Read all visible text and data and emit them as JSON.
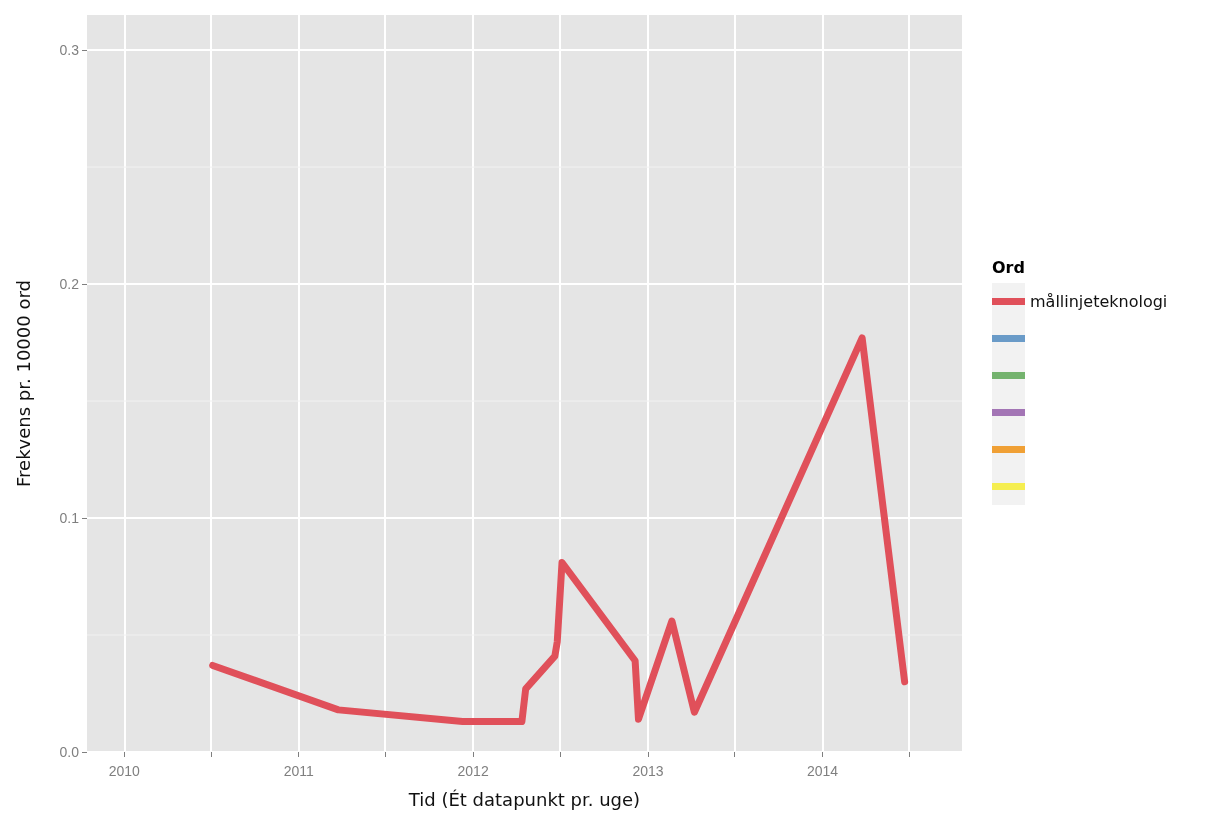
{
  "chart_data": {
    "type": "line",
    "xlabel": "Tid (Ét datapunkt pr. uge)",
    "ylabel": "Frekvens pr. 10000 ord",
    "legend_title": "Ord",
    "x": [
      "2010-07-05",
      "2011-03-25",
      "2011-12-10",
      "2012-04-12",
      "2012-04-20",
      "2012-06-20",
      "2012-06-25",
      "2012-07-05",
      "2012-12-05",
      "2012-12-12",
      "2013-02-20",
      "2013-04-08",
      "2014-03-25",
      "2014-06-22"
    ],
    "series": [
      {
        "name": "mållinjeteknologi",
        "color": "#e0505a",
        "values": [
          0.037,
          0.018,
          0.013,
          0.013,
          0.027,
          0.041,
          0.047,
          0.081,
          0.039,
          0.014,
          0.056,
          0.017,
          0.177,
          0.03
        ]
      },
      {
        "color": "#6a9bc8",
        "values": [
          null,
          null,
          null,
          null,
          null,
          null,
          null,
          null,
          null,
          null,
          null,
          null,
          null,
          null
        ]
      },
      {
        "color": "#74b36e",
        "values": [
          null,
          null,
          null,
          null,
          null,
          null,
          null,
          null,
          null,
          null,
          null,
          null,
          null,
          null
        ]
      },
      {
        "color": "#a375b5",
        "values": [
          null,
          null,
          null,
          null,
          null,
          null,
          null,
          null,
          null,
          null,
          null,
          null,
          null,
          null
        ]
      },
      {
        "color": "#f0a035",
        "values": [
          null,
          null,
          null,
          null,
          null,
          null,
          null,
          null,
          null,
          null,
          null,
          null,
          null,
          null
        ]
      },
      {
        "color": "#f5ee50",
        "values": [
          null,
          null,
          null,
          null,
          null,
          null,
          null,
          null,
          null,
          null,
          null,
          null,
          null,
          null
        ]
      }
    ],
    "xlim": [
      "2009-10-15",
      "2014-10-20"
    ],
    "xticks": [
      {
        "value": "2010-01-01",
        "label": "2010"
      },
      {
        "value": "2010-07-01",
        "label": null
      },
      {
        "value": "2011-01-01",
        "label": "2011"
      },
      {
        "value": "2011-07-01",
        "label": null
      },
      {
        "value": "2012-01-01",
        "label": "2012"
      },
      {
        "value": "2012-07-01",
        "label": null
      },
      {
        "value": "2013-01-01",
        "label": "2013"
      },
      {
        "value": "2013-07-01",
        "label": null
      },
      {
        "value": "2014-01-01",
        "label": "2014"
      },
      {
        "value": "2014-07-01",
        "label": null
      }
    ],
    "ylim": [
      0,
      0.315
    ],
    "yticks": [
      {
        "value": 0,
        "label": "0.0"
      },
      {
        "value": 0.05,
        "label": null
      },
      {
        "value": 0.1,
        "label": "0.1"
      },
      {
        "value": 0.15,
        "label": null
      },
      {
        "value": 0.2,
        "label": "0.2"
      },
      {
        "value": 0.25,
        "label": null
      },
      {
        "value": 0.3,
        "label": "0.3"
      }
    ],
    "grid": true,
    "legend": "right",
    "line_style": "solid"
  }
}
